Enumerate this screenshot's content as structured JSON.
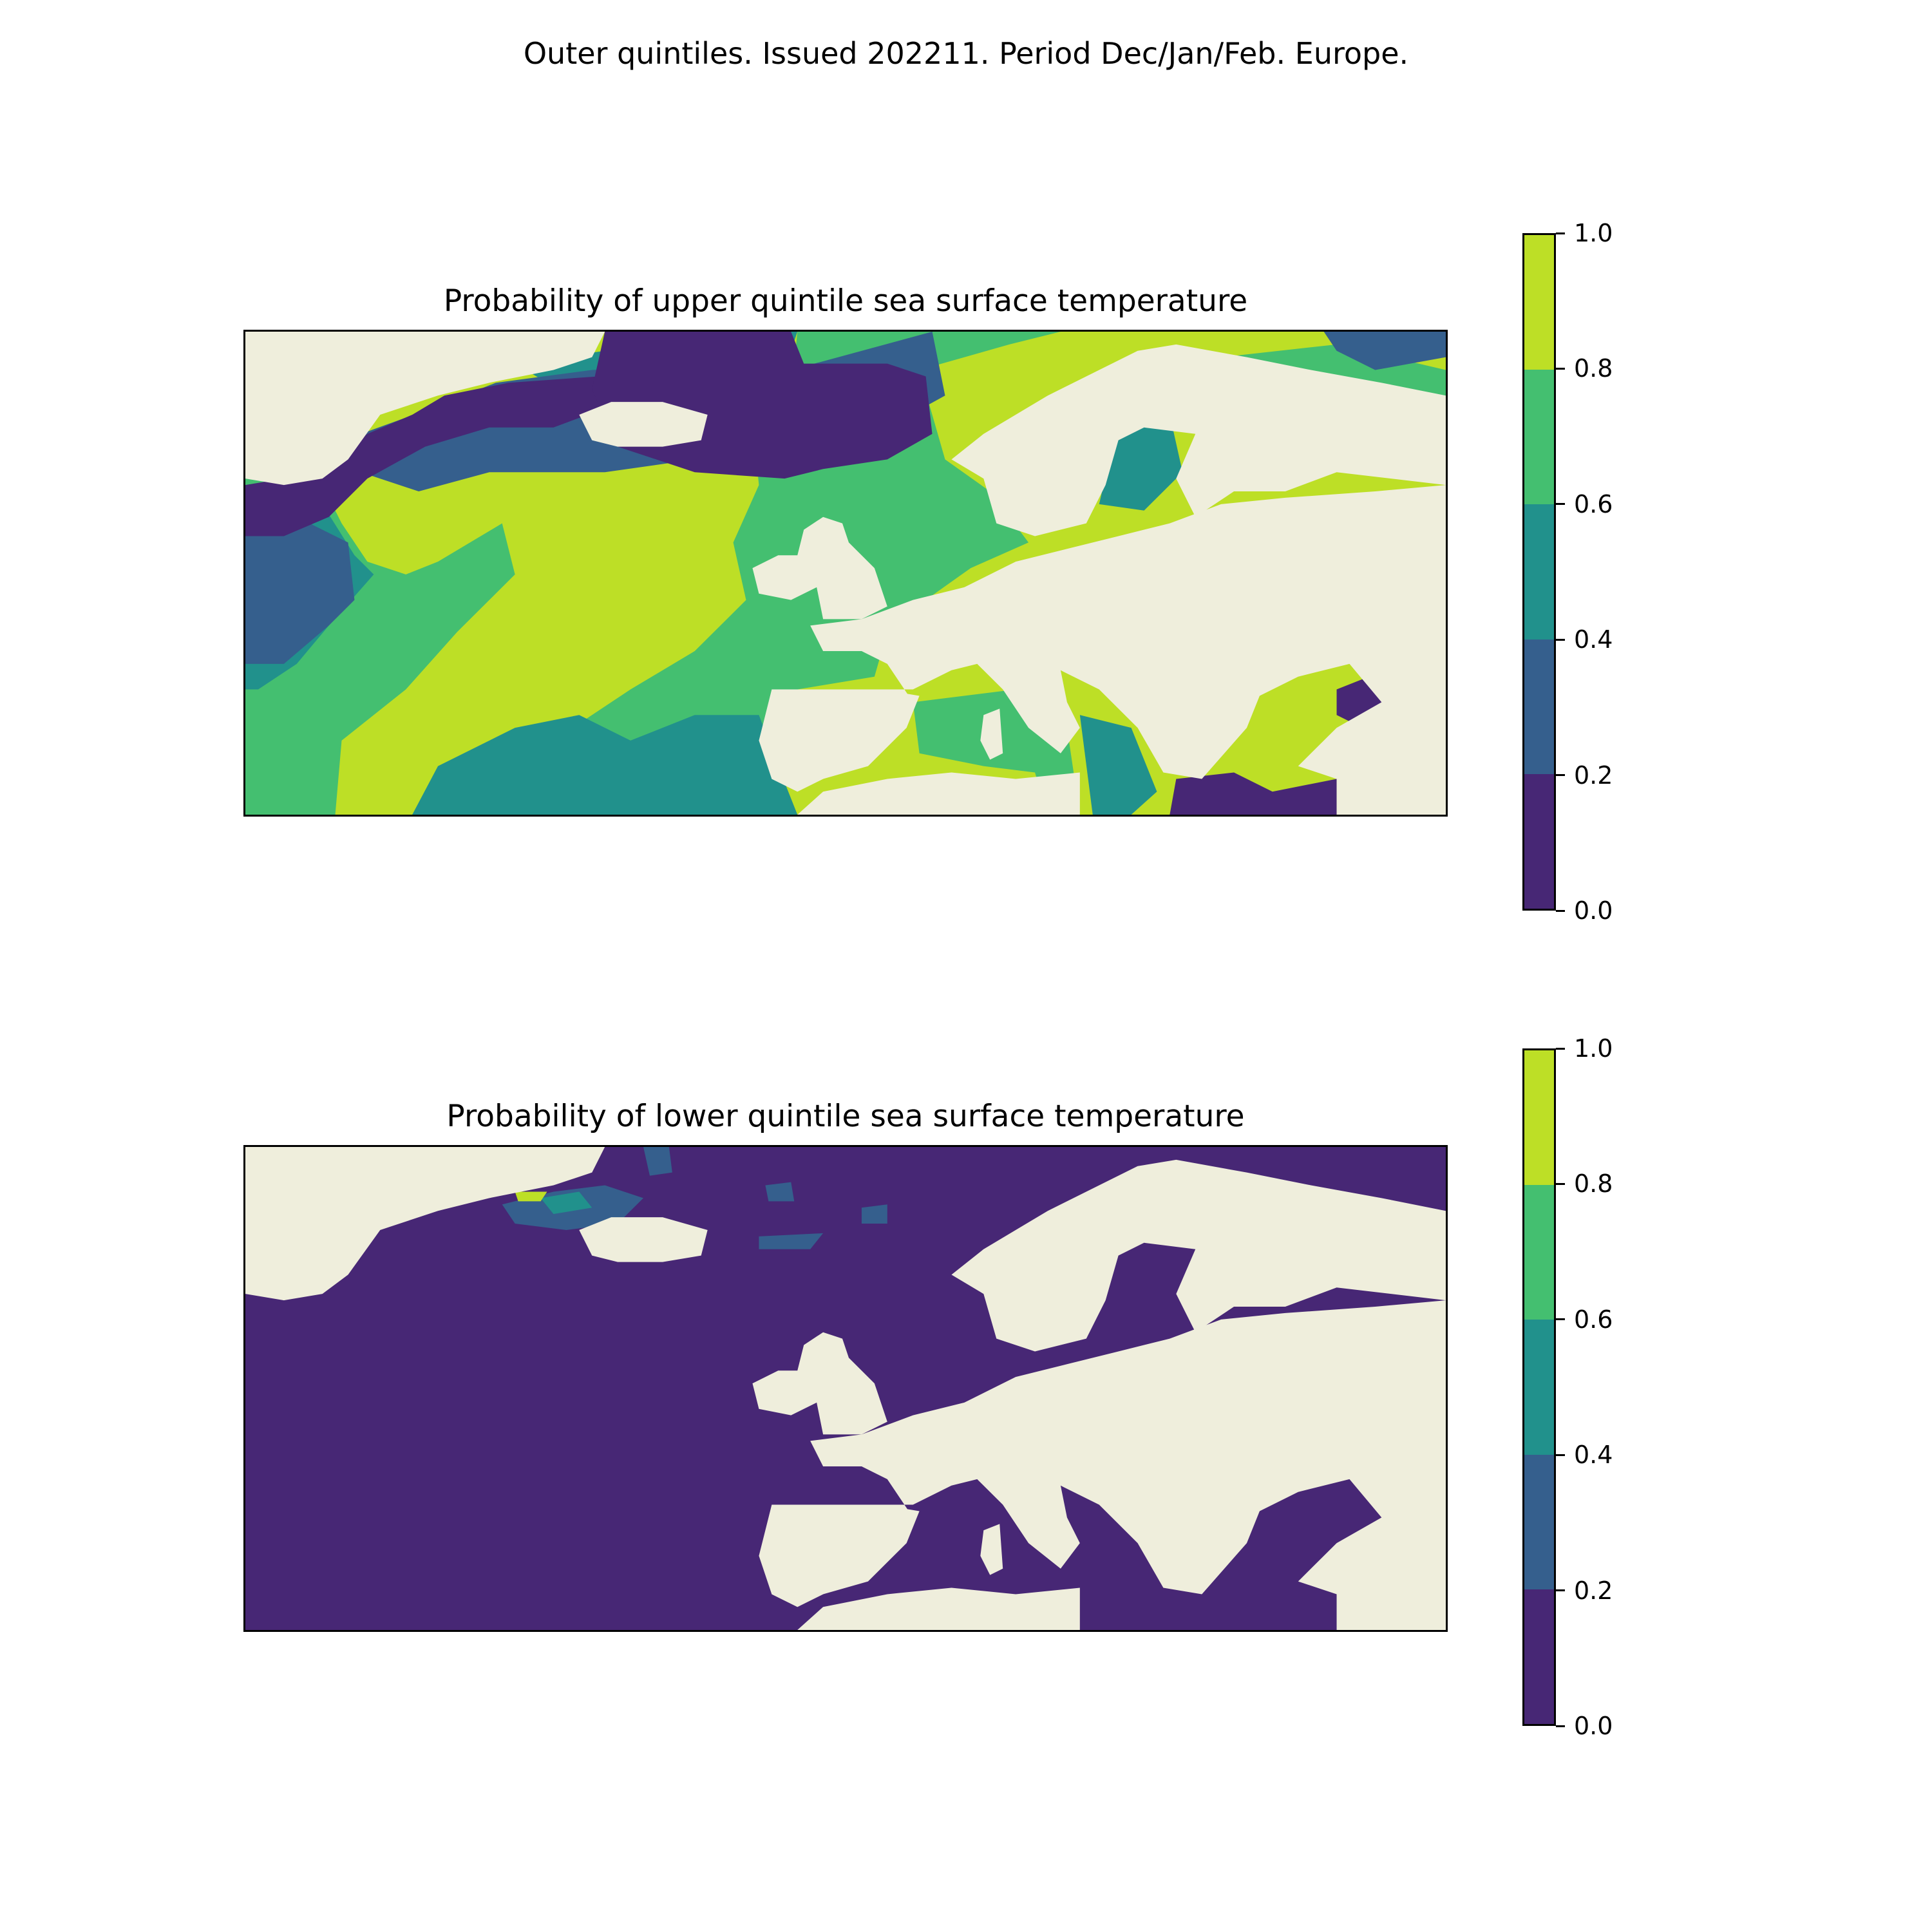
{
  "figure_title": "Outer quintiles. Issued 202211. Period Dec/Jan/Feb. Europe.",
  "colors": {
    "land": "#efeedc",
    "levels": [
      "#472775",
      "#355f8d",
      "#21918c",
      "#44bf70",
      "#bddf26"
    ]
  },
  "colorbar": {
    "ticks": [
      "0.0",
      "0.2",
      "0.4",
      "0.6",
      "0.8",
      "1.0"
    ],
    "bounds": [
      0.0,
      0.2,
      0.4,
      0.6,
      0.8,
      1.0
    ]
  },
  "panels": [
    {
      "id": "upper",
      "title": "Probability of upper quintile sea surface temperature",
      "dominant_level": "mixed 0.0-1.0; high (0.8-1.0) over central North Atlantic"
    },
    {
      "id": "lower",
      "title": "Probability of lower quintile sea surface temperature",
      "dominant_level": "0.0-0.2 almost everywhere"
    }
  ],
  "legend_placement": "right of each map"
}
